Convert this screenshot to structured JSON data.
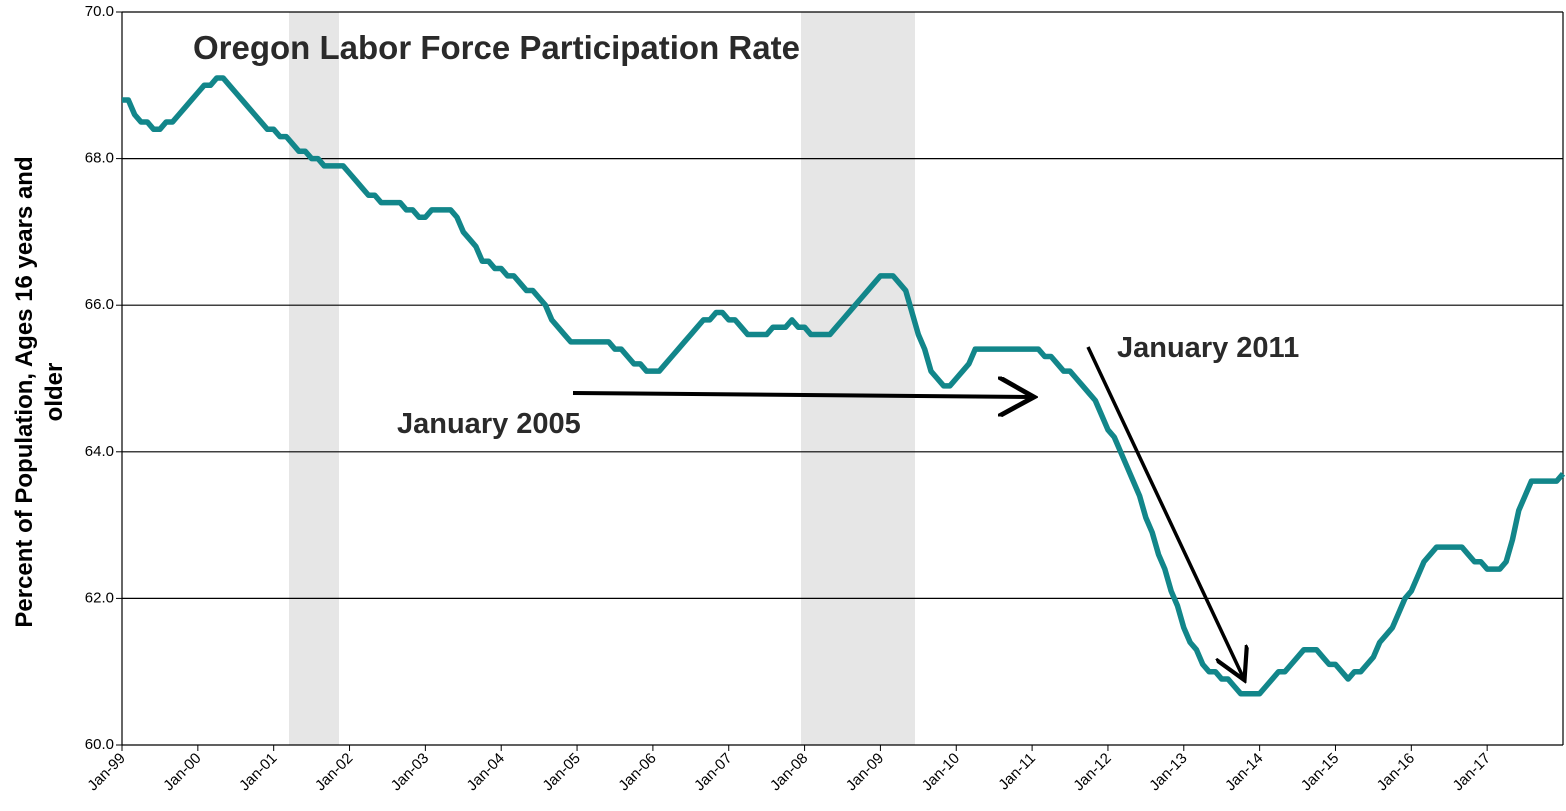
{
  "chart_data": {
    "type": "line",
    "title": "Oregon Labor Force Participation Rate",
    "ylabel": [
      "Percent of Population, Ages 16 years and",
      "older"
    ],
    "annotations": [
      "January 2005",
      "January 2011"
    ],
    "categories": [
      "Jan-99",
      null,
      null,
      null,
      null,
      null,
      null,
      null,
      null,
      null,
      null,
      null,
      "Jan-00",
      null,
      null,
      null,
      null,
      null,
      null,
      null,
      null,
      null,
      null,
      null,
      "Jan-01",
      null,
      null,
      null,
      null,
      null,
      null,
      null,
      null,
      null,
      null,
      null,
      "Jan-02",
      null,
      null,
      null,
      null,
      null,
      null,
      null,
      null,
      null,
      null,
      null,
      "Jan-03",
      null,
      null,
      null,
      null,
      null,
      null,
      null,
      null,
      null,
      null,
      null,
      "Jan-04",
      null,
      null,
      null,
      null,
      null,
      null,
      null,
      null,
      null,
      null,
      null,
      "Jan-05",
      null,
      null,
      null,
      null,
      null,
      null,
      null,
      null,
      null,
      null,
      null,
      "Jan-06",
      null,
      null,
      null,
      null,
      null,
      null,
      null,
      null,
      null,
      null,
      null,
      "Jan-07",
      null,
      null,
      null,
      null,
      null,
      null,
      null,
      null,
      null,
      null,
      null,
      "Jan-08",
      null,
      null,
      null,
      null,
      null,
      null,
      null,
      null,
      null,
      null,
      null,
      "Jan-09",
      null,
      null,
      null,
      null,
      null,
      null,
      null,
      null,
      null,
      null,
      null,
      "Jan-10",
      null,
      null,
      null,
      null,
      null,
      null,
      null,
      null,
      null,
      null,
      null,
      "Jan-11",
      null,
      null,
      null,
      null,
      null,
      null,
      null,
      null,
      null,
      null,
      null,
      "Jan-12",
      null,
      null,
      null,
      null,
      null,
      null,
      null,
      null,
      null,
      null,
      null,
      "Jan-13",
      null,
      null,
      null,
      null,
      null,
      null,
      null,
      null,
      null,
      null,
      null,
      "Jan-14",
      null,
      null,
      null,
      null,
      null,
      null,
      null,
      null,
      null,
      null,
      null,
      "Jan-15",
      null,
      null,
      null,
      null,
      null,
      null,
      null,
      null,
      null,
      null,
      null,
      "Jan-16",
      null,
      null,
      null,
      null,
      null,
      null,
      null,
      null,
      null,
      null,
      null,
      "Jan-17",
      null,
      null,
      null,
      null,
      null,
      null,
      null,
      null,
      null,
      null,
      null,
      null
    ],
    "series": [
      {
        "name": "Oregon",
        "color": "#12868a",
        "values": [
          68.8,
          68.8,
          68.6,
          68.5,
          68.5,
          68.4,
          68.4,
          68.5,
          68.5,
          68.6,
          68.7,
          68.8,
          68.9,
          69.0,
          69.0,
          69.1,
          69.1,
          69.0,
          68.9,
          68.8,
          68.7,
          68.6,
          68.5,
          68.4,
          68.4,
          68.3,
          68.3,
          68.2,
          68.1,
          68.1,
          68.0,
          68.0,
          67.9,
          67.9,
          67.9,
          67.9,
          67.8,
          67.7,
          67.6,
          67.5,
          67.5,
          67.4,
          67.4,
          67.4,
          67.4,
          67.3,
          67.3,
          67.2,
          67.2,
          67.3,
          67.3,
          67.3,
          67.3,
          67.2,
          67.0,
          66.9,
          66.8,
          66.6,
          66.6,
          66.5,
          66.5,
          66.4,
          66.4,
          66.3,
          66.2,
          66.2,
          66.1,
          66.0,
          65.8,
          65.7,
          65.6,
          65.5,
          65.5,
          65.5,
          65.5,
          65.5,
          65.5,
          65.5,
          65.4,
          65.4,
          65.3,
          65.2,
          65.2,
          65.1,
          65.1,
          65.1,
          65.2,
          65.3,
          65.4,
          65.5,
          65.6,
          65.7,
          65.8,
          65.8,
          65.9,
          65.9,
          65.8,
          65.8,
          65.7,
          65.6,
          65.6,
          65.6,
          65.6,
          65.7,
          65.7,
          65.7,
          65.8,
          65.7,
          65.7,
          65.6,
          65.6,
          65.6,
          65.6,
          65.7,
          65.8,
          65.9,
          66.0,
          66.1,
          66.2,
          66.3,
          66.4,
          66.4,
          66.4,
          66.3,
          66.2,
          65.9,
          65.6,
          65.4,
          65.1,
          65.0,
          64.9,
          64.9,
          65.0,
          65.1,
          65.2,
          65.4,
          65.4,
          65.4,
          65.4,
          65.4,
          65.4,
          65.4,
          65.4,
          65.4,
          65.4,
          65.4,
          65.3,
          65.3,
          65.2,
          65.1,
          65.1,
          65.0,
          64.9,
          64.8,
          64.7,
          64.5,
          64.3,
          64.2,
          64.0,
          63.8,
          63.6,
          63.4,
          63.1,
          62.9,
          62.6,
          62.4,
          62.1,
          61.9,
          61.6,
          61.4,
          61.3,
          61.1,
          61.0,
          61.0,
          60.9,
          60.9,
          60.8,
          60.7,
          60.7,
          60.7,
          60.7,
          60.8,
          60.9,
          61.0,
          61.0,
          61.1,
          61.2,
          61.3,
          61.3,
          61.3,
          61.2,
          61.1,
          61.1,
          61.0,
          60.9,
          61.0,
          61.0,
          61.1,
          61.2,
          61.4,
          61.5,
          61.6,
          61.8,
          62.0,
          62.1,
          62.3,
          62.5,
          62.6,
          62.7,
          62.7,
          62.7,
          62.7,
          62.7,
          62.6,
          62.5,
          62.5,
          62.4,
          62.4,
          62.4,
          62.5,
          62.8,
          63.2,
          63.4,
          63.6,
          63.6,
          63.6,
          63.6,
          63.6,
          63.7
        ]
      }
    ],
    "ylim": [
      60,
      70
    ],
    "yticks": [
      {
        "value": 60,
        "label": "60.0"
      },
      {
        "value": 62,
        "label": "62.0"
      },
      {
        "value": 64,
        "label": "64.0"
      },
      {
        "value": 66,
        "label": "66.0"
      },
      {
        "value": 68,
        "label": "68.0"
      },
      {
        "value": 70,
        "label": "70.0"
      }
    ],
    "grid": true
  }
}
